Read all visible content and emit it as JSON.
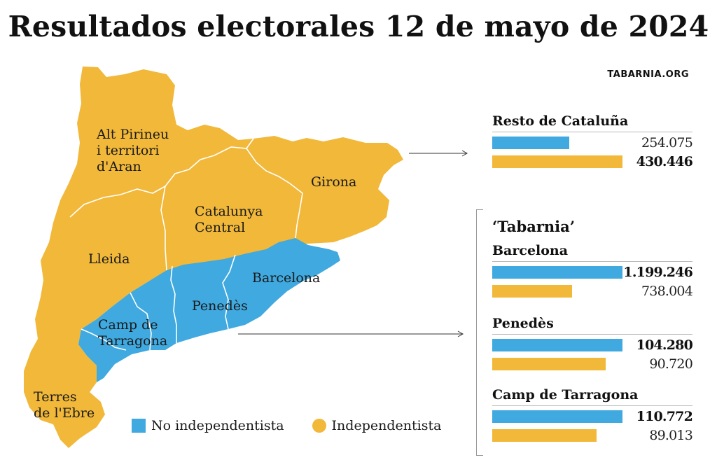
{
  "title": "Resultados electorales 12 de mayo de 2024",
  "source": "TABARNIA.ORG",
  "colors": {
    "no_independentista": "#3fa9e0",
    "independentista": "#f1b83a",
    "border": "#ffffff"
  },
  "regions": [
    {
      "id": "alt-pirineu",
      "lines": [
        "Alt Pirineu",
        "i territori",
        "d'Aran"
      ],
      "bloc": "independentista"
    },
    {
      "id": "girona",
      "lines": [
        "Girona"
      ],
      "bloc": "independentista"
    },
    {
      "id": "catalunya-central",
      "lines": [
        "Catalunya",
        "Central"
      ],
      "bloc": "independentista"
    },
    {
      "id": "lleida",
      "lines": [
        "Lleida"
      ],
      "bloc": "independentista"
    },
    {
      "id": "barcelona",
      "lines": [
        "Barcelona"
      ],
      "bloc": "no_independentista"
    },
    {
      "id": "penedes",
      "lines": [
        "Penedès"
      ],
      "bloc": "no_independentista"
    },
    {
      "id": "camp-de-tarragona",
      "lines": [
        "Camp de",
        "Tarragona"
      ],
      "bloc": "no_independentista"
    },
    {
      "id": "terres-de-lebre",
      "lines": [
        "Terres",
        "de l'Ebre"
      ],
      "bloc": "independentista"
    }
  ],
  "legend": {
    "no_independentista": "No independentista",
    "independentista": "Independentista"
  },
  "resto": {
    "title": "Resto de Cataluña",
    "no_independentista": {
      "value": 254075,
      "label": "254.075"
    },
    "independentista": {
      "value": 430446,
      "label": "430.446"
    }
  },
  "tabarnia": {
    "title": "‘Tabarnia’",
    "groups": [
      {
        "name": "Barcelona",
        "no_independentista": {
          "value": 1199246,
          "label": "1.199.246"
        },
        "independentista": {
          "value": 738004,
          "label": "738.004"
        }
      },
      {
        "name": "Penedès",
        "no_independentista": {
          "value": 104280,
          "label": "104.280"
        },
        "independentista": {
          "value": 90720,
          "label": "90.720"
        }
      },
      {
        "name": "Camp de Tarragona",
        "no_independentista": {
          "value": 110772,
          "label": "110.772"
        },
        "independentista": {
          "value": 89013,
          "label": "89.013"
        }
      }
    ]
  }
}
